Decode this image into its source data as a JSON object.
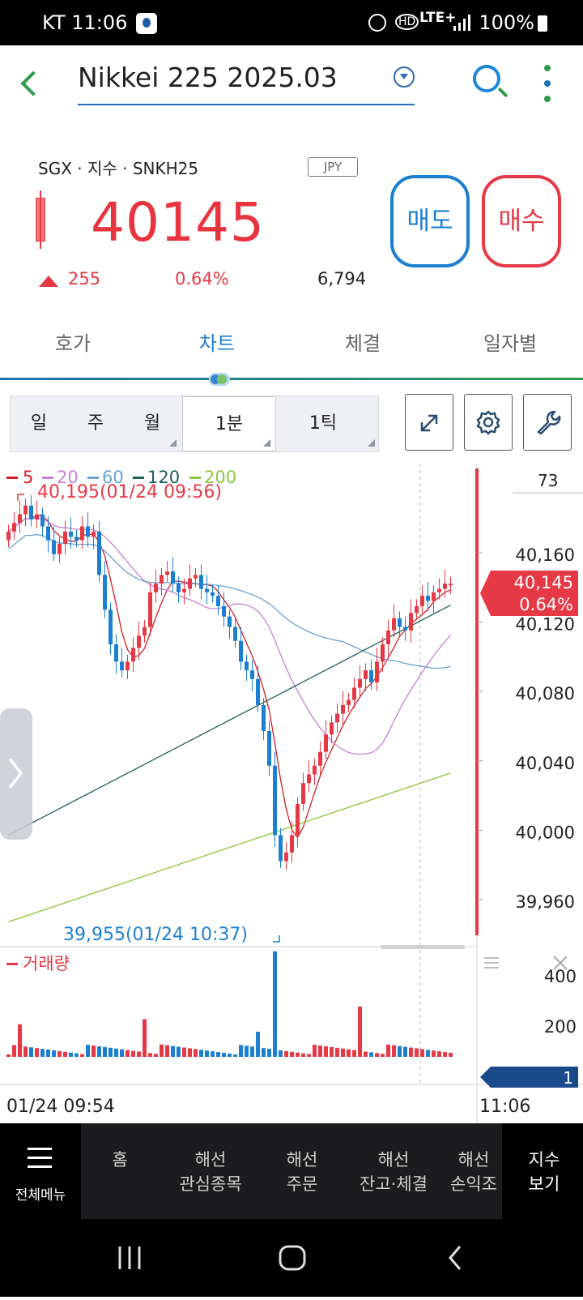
{
  "status": {
    "carrier": "KT",
    "time": "11:06",
    "battery": "100%",
    "network": "LTE+",
    "hd": "HD"
  },
  "header": {
    "title": "Nikkei 225 2025.03"
  },
  "quote": {
    "subtitle": "SGX · 지수 · SNKH25",
    "currency": "JPY",
    "price": "40145",
    "change": "255",
    "change_pct": "0.64%",
    "volume": "6,794",
    "sell_label": "매도",
    "buy_label": "매수",
    "up_color": "#e63946",
    "down_color": "#1d7fd0"
  },
  "tabs": [
    "호가",
    "차트",
    "체결",
    "일자별"
  ],
  "active_tab": "차트",
  "periods": {
    "day": "일",
    "week": "주",
    "month": "월",
    "min": "1분",
    "tick": "1틱",
    "selected": "1분"
  },
  "toolbar_icons": [
    "expand-icon",
    "gear-icon",
    "wrench-icon"
  ],
  "chart_data": {
    "type": "candlestick",
    "interval": "1분",
    "x": [
      "01/24 09:54",
      "11:06"
    ],
    "ylim": [
      39940,
      40210
    ],
    "y_ticks": [
      "40,160",
      "40,120",
      "40,080",
      "40,040",
      "40,000",
      "39,960"
    ],
    "top_tick": "73",
    "ma_legend": [
      {
        "name": "5",
        "color": "#d11f26"
      },
      {
        "name": "20",
        "color": "#c97fd8"
      },
      {
        "name": "60",
        "color": "#6aa0d4"
      },
      {
        "name": "120",
        "color": "#1d5f5a"
      },
      {
        "name": "200",
        "color": "#8cc63f"
      }
    ],
    "high_label": "40,195(01/24 09:56)",
    "low_label": "39,955(01/24 10:37)",
    "last_price": "40,145",
    "last_pct": "0.64%",
    "volume_title": "거래량",
    "volume_ticks": [
      "400",
      "200"
    ],
    "volume_last": "1"
  },
  "nav": {
    "menu": "전체메뉴",
    "items": [
      "홈",
      "해선\n관심종목",
      "해선\n주문",
      "해선\n잔고·체결",
      "해선\n손익조",
      "지수\n보기"
    ]
  }
}
